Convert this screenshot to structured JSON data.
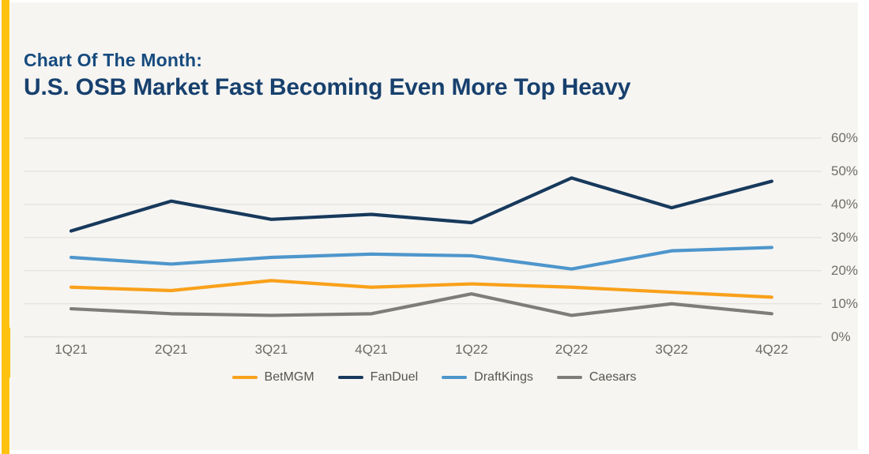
{
  "page": {
    "outer_background": "#FFFFFF",
    "card_background": "#F6F5F2",
    "accent_bar_color": "#FFC20E"
  },
  "header": {
    "eyebrow": "Chart Of The Month:",
    "title": "U.S. OSB Market Fast Becoming Even More Top Heavy",
    "title_color": "#17406D"
  },
  "chart_data": {
    "type": "line",
    "title": "U.S. OSB Market Fast Becoming Even More Top Heavy",
    "xlabel": "",
    "ylabel": "",
    "categories": [
      "1Q21",
      "2Q21",
      "3Q21",
      "4Q21",
      "1Q22",
      "2Q22",
      "3Q22",
      "4Q22"
    ],
    "series": [
      {
        "name": "BetMGM",
        "color": "#F9A11B",
        "values": [
          15,
          14,
          17,
          15,
          16,
          15,
          13.5,
          12
        ]
      },
      {
        "name": "FanDuel",
        "color": "#17395C",
        "values": [
          32,
          41,
          35.5,
          37,
          34.5,
          48,
          39,
          47
        ]
      },
      {
        "name": "DraftKings",
        "color": "#4E96CC",
        "values": [
          24,
          22,
          24,
          25,
          24.5,
          20.5,
          26,
          27
        ]
      },
      {
        "name": "Caesars",
        "color": "#7E7D79",
        "values": [
          8.5,
          7,
          6.5,
          7,
          13,
          6.5,
          10,
          7
        ]
      }
    ],
    "ylim": [
      0,
      60
    ],
    "yticks": [
      {
        "value": 0,
        "label": "0%"
      },
      {
        "value": 10,
        "label": "10%"
      },
      {
        "value": 20,
        "label": "20%"
      },
      {
        "value": 30,
        "label": "30%"
      },
      {
        "value": 40,
        "label": "40%"
      },
      {
        "value": 50,
        "label": "50%"
      },
      {
        "value": 60,
        "label": "60%"
      }
    ],
    "grid": true,
    "gridline_color": "#E3E2DE",
    "legend_position": "bottom",
    "legend": [
      "BetMGM",
      "FanDuel",
      "DraftKings",
      "Caesars"
    ]
  }
}
